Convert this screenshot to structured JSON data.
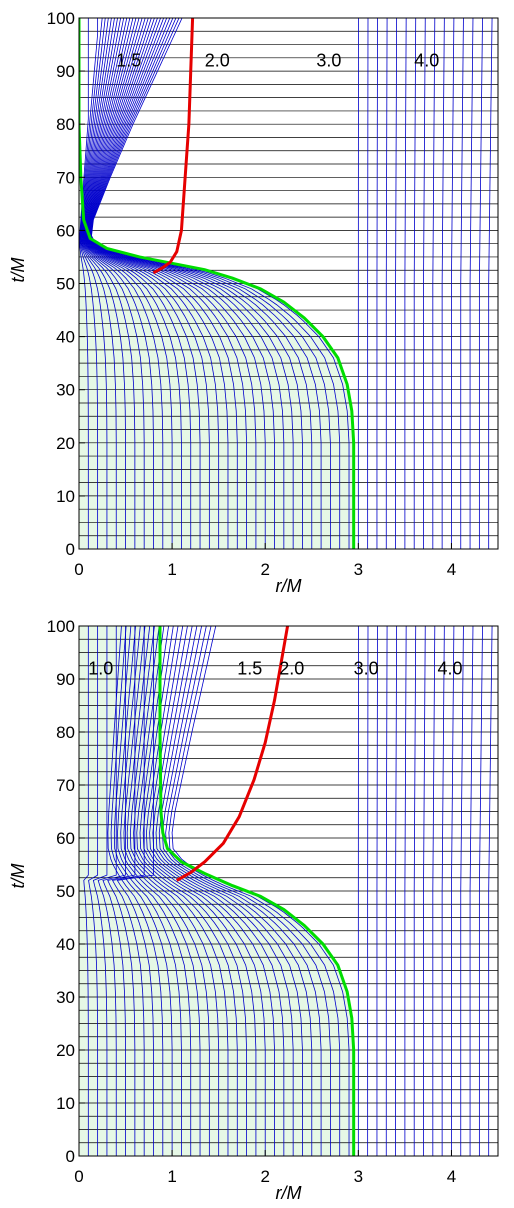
{
  "colors": {
    "grid": "#0000cc",
    "hgrid": "#000000",
    "horizon": "#00dd00",
    "shade": "#e6f8e6",
    "trapped": "#e60000"
  },
  "chart_data": [
    {
      "type": "line",
      "xlabel": "r/M",
      "ylabel": "t/M",
      "xlim": [
        0,
        4.5
      ],
      "ylim": [
        0,
        100
      ],
      "xticks": [
        "0",
        "1",
        "2",
        "3",
        "4"
      ],
      "yticks": [
        "0",
        "10",
        "20",
        "30",
        "40",
        "50",
        "60",
        "70",
        "80",
        "90",
        "100"
      ],
      "grid": true,
      "contour_labels": [
        {
          "text": "1.5",
          "x": 0.4,
          "y": 92
        },
        {
          "text": "2.0",
          "x": 1.35,
          "y": 92
        },
        {
          "text": "3.0",
          "x": 2.55,
          "y": 92
        },
        {
          "text": "4.0",
          "x": 3.6,
          "y": 92
        }
      ],
      "series": [
        {
          "role": "horizon",
          "x": [
            2.95,
            2.95,
            2.93,
            2.88,
            2.78,
            2.62,
            2.42,
            2.2,
            1.95,
            1.65,
            1.35,
            1.0,
            0.65,
            0.3,
            0.12,
            0.05,
            0.02,
            0.0,
            0.0
          ],
          "y": [
            0,
            20,
            26,
            31,
            36,
            40,
            43.5,
            46.5,
            49,
            51,
            52.6,
            53.8,
            55,
            56.6,
            58.5,
            62,
            70,
            80,
            100
          ]
        },
        {
          "role": "trapped",
          "x": [
            0.8,
            0.9,
            0.98,
            1.05,
            1.1,
            1.14,
            1.16,
            1.18,
            1.2,
            1.22
          ],
          "y": [
            52,
            53,
            54,
            56,
            60,
            70,
            75,
            80,
            90,
            100
          ]
        }
      ]
    },
    {
      "type": "line",
      "xlabel": "r/M",
      "ylabel": "t/M",
      "xlim": [
        0,
        4.5
      ],
      "ylim": [
        0,
        100
      ],
      "xticks": [
        "0",
        "1",
        "2",
        "3",
        "4"
      ],
      "yticks": [
        "0",
        "10",
        "20",
        "30",
        "40",
        "50",
        "60",
        "70",
        "80",
        "90",
        "100"
      ],
      "grid": true,
      "contour_labels": [
        {
          "text": "1.0",
          "x": 0.1,
          "y": 92
        },
        {
          "text": "1.5",
          "x": 1.7,
          "y": 92
        },
        {
          "text": "2.0",
          "x": 2.15,
          "y": 92
        },
        {
          "text": "3.0",
          "x": 2.95,
          "y": 92
        },
        {
          "text": "4.0",
          "x": 3.85,
          "y": 92
        }
      ],
      "series": [
        {
          "role": "horizon",
          "x": [
            2.95,
            2.95,
            2.93,
            2.88,
            2.78,
            2.62,
            2.42,
            2.2,
            1.95,
            1.65,
            1.35,
            1.1,
            0.95,
            0.9,
            0.88,
            0.87,
            0.87
          ],
          "y": [
            0,
            20,
            26,
            31,
            36,
            40,
            43.5,
            46.5,
            49,
            51,
            53.3,
            55.5,
            58,
            61,
            65,
            80,
            100
          ]
        },
        {
          "role": "trapped",
          "x": [
            1.05,
            1.2,
            1.35,
            1.55,
            1.72,
            1.88,
            2.0,
            2.1,
            2.17,
            2.24
          ],
          "y": [
            52,
            53.5,
            55.5,
            59,
            64,
            71,
            78,
            86,
            93,
            100
          ]
        }
      ]
    }
  ]
}
